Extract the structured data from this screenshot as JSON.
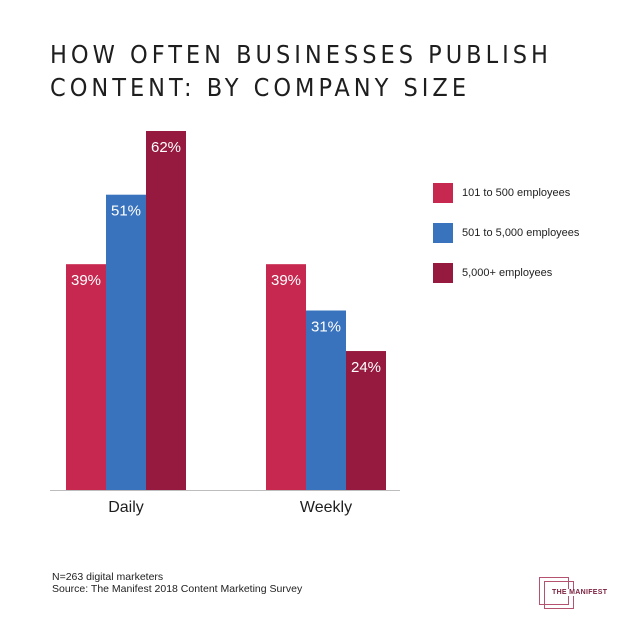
{
  "title_lines": [
    "HOW OFTEN BUSINESSES PUBLISH",
    "CONTENT: BY COMPANY SIZE"
  ],
  "chart_data": {
    "type": "bar",
    "categories": [
      "Daily",
      "Weekly"
    ],
    "series": [
      {
        "name": "101 to 500 employees",
        "values": [
          39,
          39
        ],
        "labels": [
          "39%",
          "39%"
        ],
        "color": "#c7284f"
      },
      {
        "name": "501 to 5,000 employees",
        "values": [
          51,
          31
        ],
        "labels": [
          "51%",
          "31%"
        ],
        "color": "#3a73bd"
      },
      {
        "name": "5,000+ employees",
        "values": [
          62,
          24
        ],
        "labels": [
          "62%",
          "24%"
        ],
        "color": "#961a40"
      }
    ],
    "ylim": [
      0,
      62
    ],
    "grid": false,
    "legend_position": "right"
  },
  "footnote": {
    "sample": "N=263 digital marketers",
    "source": "Source: The Manifest 2018 Content Marketing Survey"
  },
  "logo": {
    "text": "THE MANIFEST",
    "color": "#b5526f"
  }
}
